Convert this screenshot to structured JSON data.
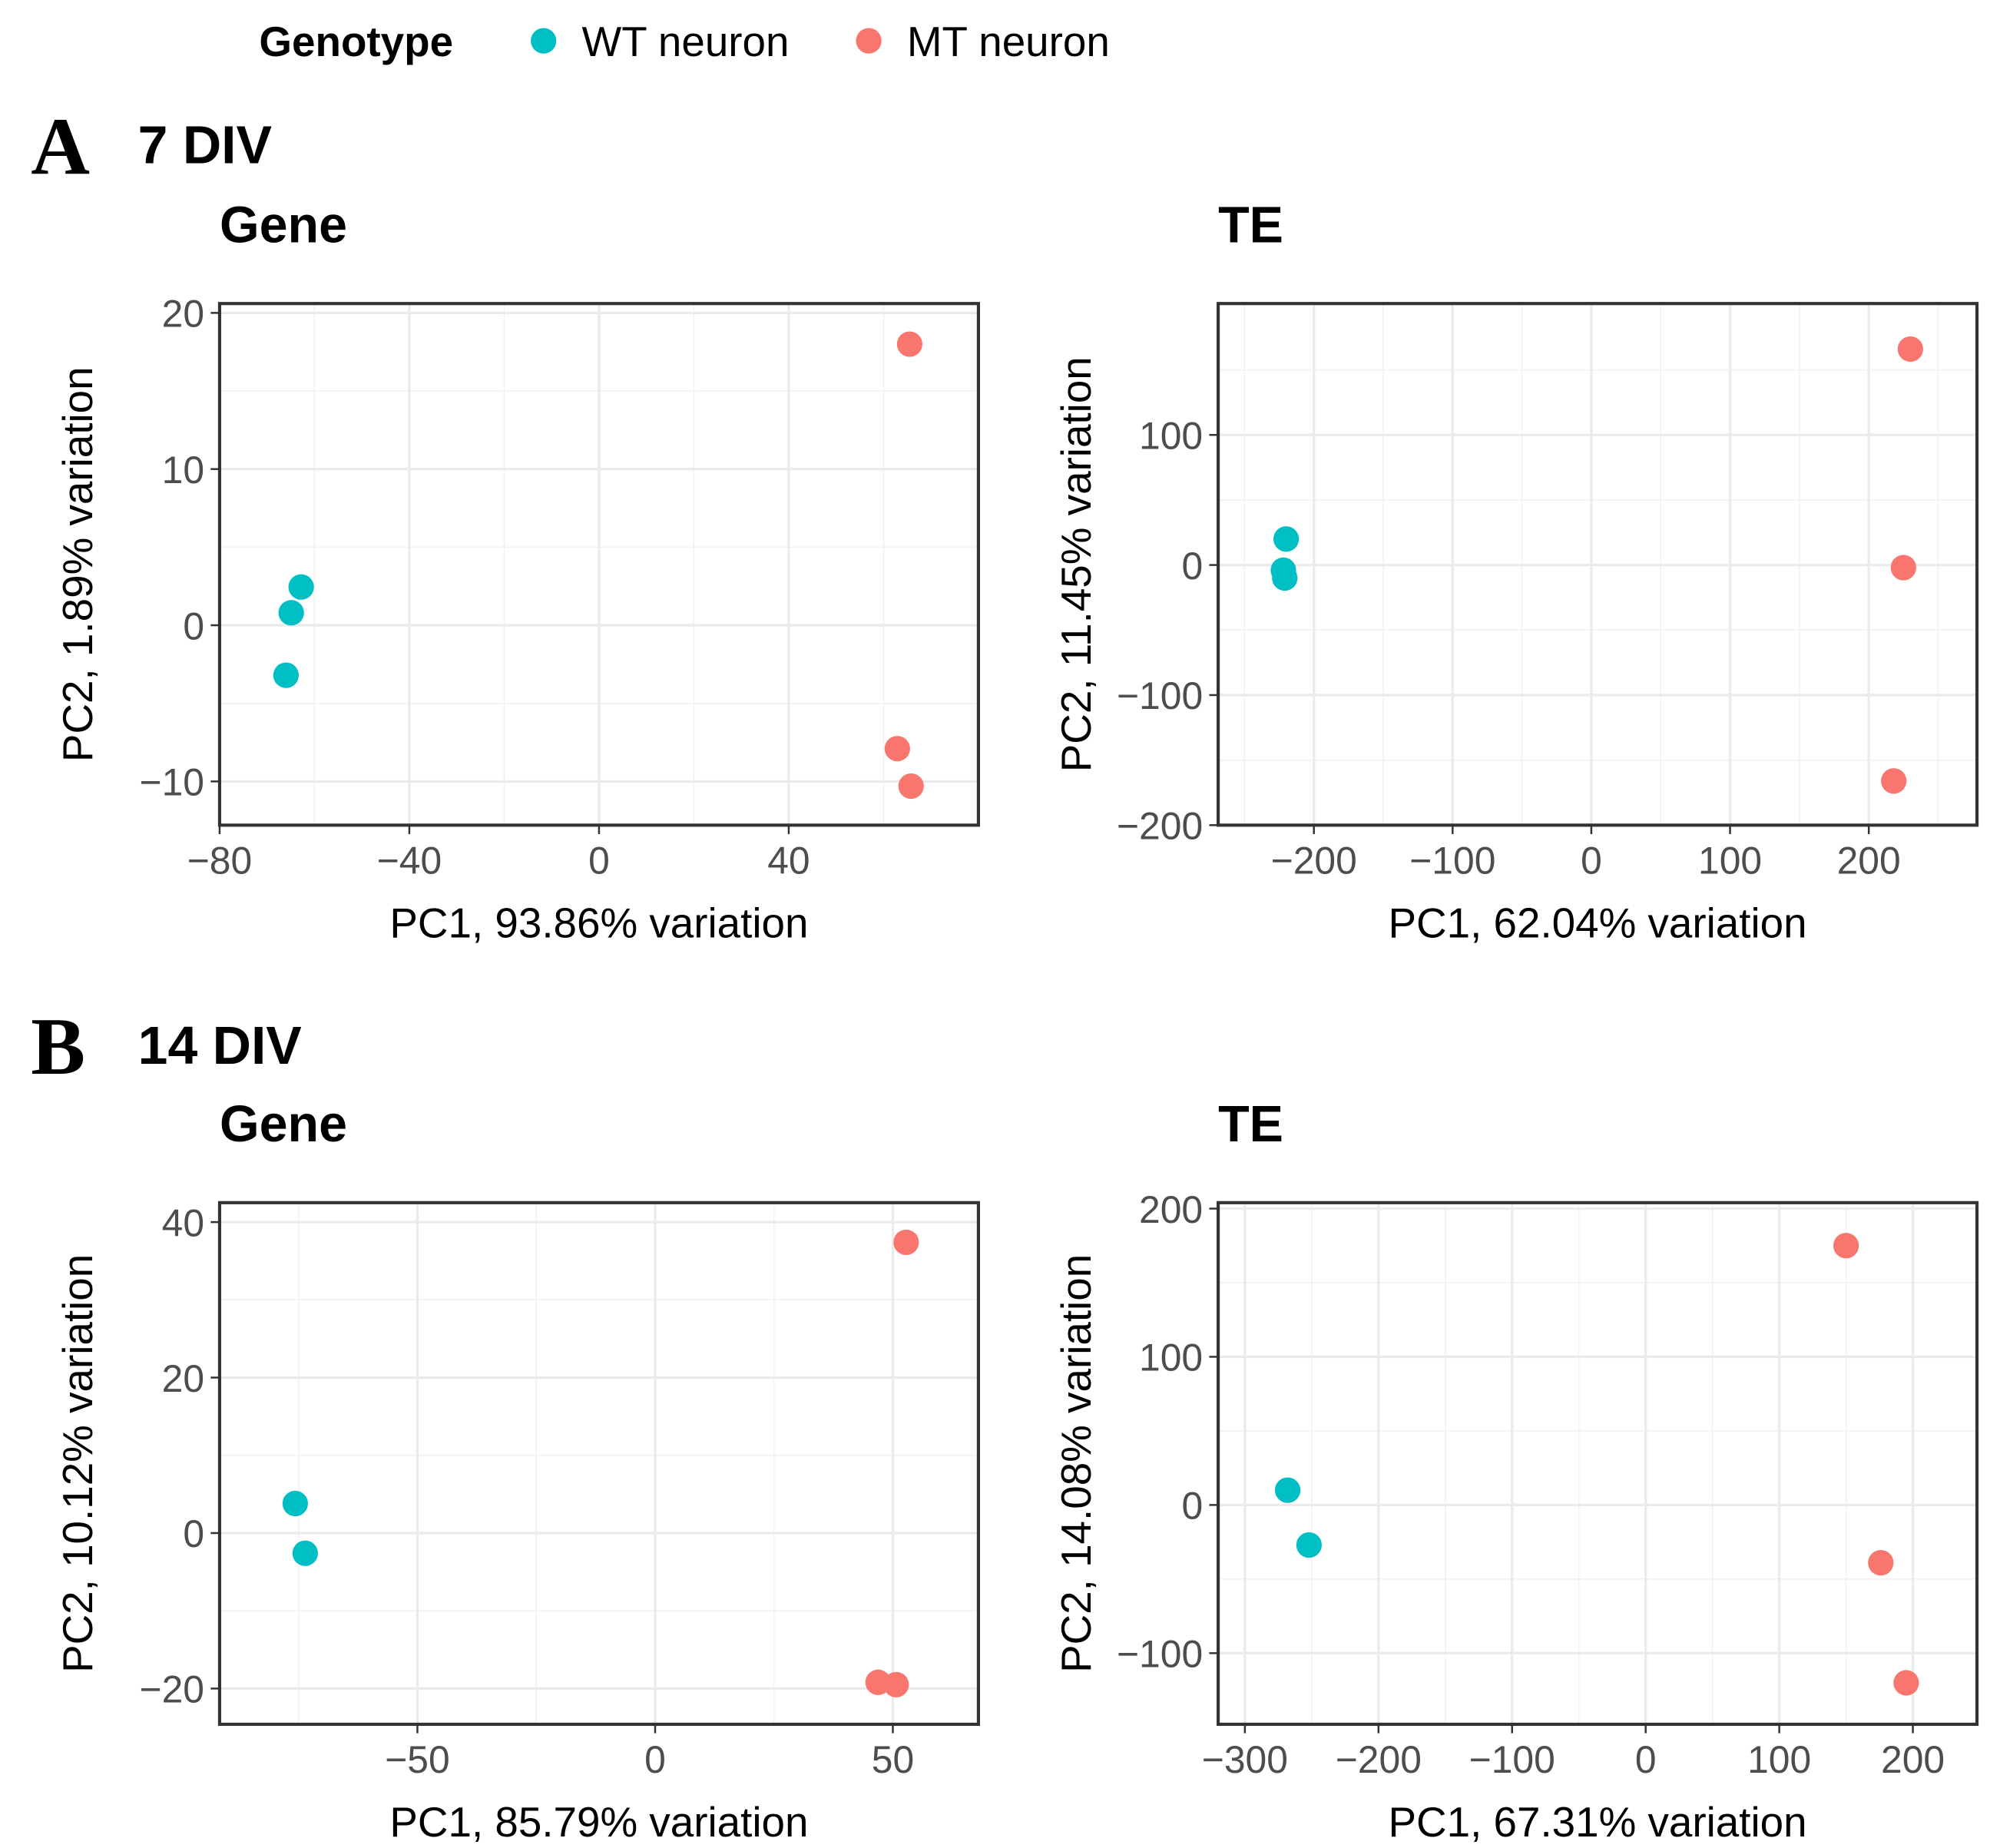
{
  "legend": {
    "title": "Genotype",
    "entries": [
      {
        "label": "WT neuron",
        "color": "#00BFC4"
      },
      {
        "label": "MT neuron",
        "color": "#F8766D"
      }
    ]
  },
  "sections": [
    {
      "letter": "A",
      "title": "7 DIV"
    },
    {
      "letter": "B",
      "title": "14 DIV"
    }
  ],
  "chart_data": [
    {
      "type": "scatter",
      "section": "A",
      "title": "Gene",
      "xlabel": "PC1, 93.86% variation",
      "ylabel": "PC2, 1.89% variation",
      "xlim": [
        -80,
        80
      ],
      "ylim": [
        -12.8,
        20.6
      ],
      "xticks": [
        -80,
        -40,
        0,
        40
      ],
      "xtick_labels": [
        "−80",
        "−40",
        "0",
        "40"
      ],
      "yticks": [
        -10,
        0,
        10,
        20
      ],
      "ytick_labels": [
        "−10",
        "0",
        "10",
        "20"
      ],
      "grid": true,
      "series": [
        {
          "name": "WT neuron",
          "x": [
            -62.8,
            -64.9,
            -66.0
          ],
          "y": [
            2.45,
            0.8,
            -3.2
          ]
        },
        {
          "name": "MT neuron",
          "x": [
            65.5,
            62.9,
            65.8
          ],
          "y": [
            18.0,
            -7.9,
            -10.3
          ]
        }
      ]
    },
    {
      "type": "scatter",
      "section": "A",
      "title": "TE",
      "xlabel": "PC1, 62.04% variation",
      "ylabel": "PC2, 11.45% variation",
      "xlim": [
        -269,
        278
      ],
      "ylim": [
        -200,
        201
      ],
      "xticks": [
        -200,
        -100,
        0,
        100,
        200
      ],
      "xtick_labels": [
        "−200",
        "−100",
        "0",
        "100",
        "200"
      ],
      "yticks": [
        -200,
        -100,
        0,
        100
      ],
      "ytick_labels": [
        "−200",
        "−100",
        "0",
        "100"
      ],
      "grid": true,
      "series": [
        {
          "name": "WT neuron",
          "x": [
            -220,
            -222,
            -221
          ],
          "y": [
            20,
            -4,
            -10
          ]
        },
        {
          "name": "MT neuron",
          "x": [
            230,
            225,
            218
          ],
          "y": [
            166,
            -2,
            -166
          ]
        }
      ]
    },
    {
      "type": "scatter",
      "section": "B",
      "title": "Gene",
      "xlabel": "PC1, 85.79% variation",
      "ylabel": "PC2, 10.12% variation",
      "xlim": [
        -91.6,
        68
      ],
      "ylim": [
        -24.6,
        42.5
      ],
      "xticks": [
        -50,
        0,
        50
      ],
      "xtick_labels": [
        "−50",
        "0",
        "50"
      ],
      "yticks": [
        -20,
        0,
        20,
        40
      ],
      "ytick_labels": [
        "−20",
        "0",
        "20",
        "40"
      ],
      "grid": true,
      "series": [
        {
          "name": "WT neuron",
          "x": [
            -75.7,
            -73.6
          ],
          "y": [
            3.8,
            -2.6
          ]
        },
        {
          "name": "MT neuron",
          "x": [
            52.8,
            46.9,
            50.7
          ],
          "y": [
            37.4,
            -19.2,
            -19.5
          ]
        }
      ]
    },
    {
      "type": "scatter",
      "section": "B",
      "title": "TE",
      "xlabel": "PC1, 67.31% variation",
      "ylabel": "PC2, 14.08% variation",
      "xlim": [
        -320,
        248
      ],
      "ylim": [
        -148,
        204
      ],
      "xticks": [
        -300,
        -200,
        -100,
        0,
        100,
        200
      ],
      "xtick_labels": [
        "−300",
        "−200",
        "−100",
        "0",
        "100",
        "200"
      ],
      "yticks": [
        -100,
        0,
        100,
        200
      ],
      "ytick_labels": [
        "−100",
        "0",
        "100",
        "200"
      ],
      "grid": true,
      "series": [
        {
          "name": "WT neuron",
          "x": [
            -268,
            -252
          ],
          "y": [
            10,
            -27
          ]
        },
        {
          "name": "MT neuron",
          "x": [
            150,
            176,
            195
          ],
          "y": [
            175,
            -39,
            -120
          ]
        }
      ]
    }
  ]
}
